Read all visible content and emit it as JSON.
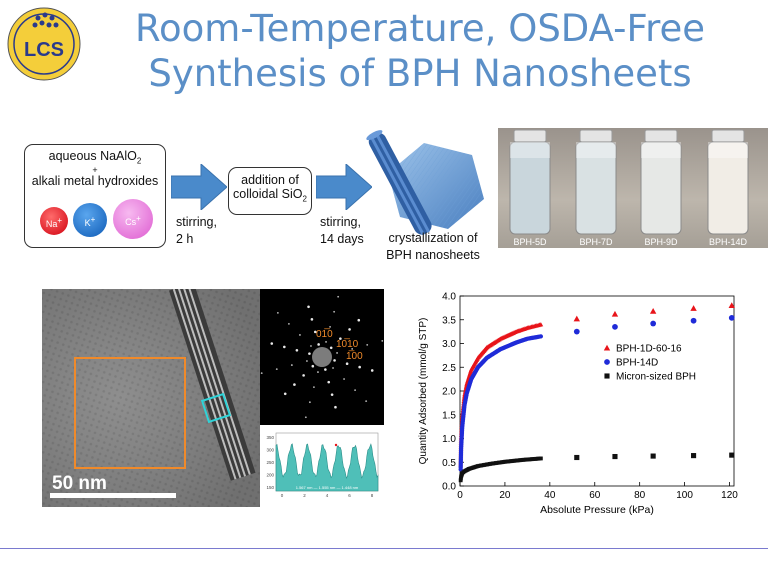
{
  "logo": {
    "text": "LCS"
  },
  "title": {
    "line1": "Room-Temperature, OSDA-Free",
    "line2": "Synthesis of BPH Nanosheets"
  },
  "scheme": {
    "box1_line1": "aqueous NaAlO",
    "box1_line1_sub": "2",
    "box1_plus": "+",
    "box1_line2": "alkali metal hydroxides",
    "ions": [
      {
        "label": "Na",
        "sup": "+",
        "color": "#e3001b"
      },
      {
        "label": "K",
        "sup": "+",
        "color": "#1a6fc9"
      },
      {
        "label": "Cs",
        "sup": "+",
        "color": "#e06fd6"
      }
    ],
    "step1_line1": "stirring,",
    "step1_line2": "2 h",
    "box2_line1": "addition of",
    "box2_line2": "colloidal SiO",
    "box2_sub": "2",
    "step2_line1": "stirring,",
    "step2_line2": "14 days",
    "crystal_line1": "crystallization of",
    "crystal_line2": "BPH nanosheets"
  },
  "vials": [
    {
      "label": "BPH-5D",
      "liquid": "#c9d6dc"
    },
    {
      "label": "BPH-7D",
      "liquid": "#d9e1e3"
    },
    {
      "label": "BPH-9D",
      "liquid": "#e6e8e6"
    },
    {
      "label": "BPH-14D",
      "liquid": "#f1ede6"
    }
  ],
  "tem": {
    "scale_label": "50 nm",
    "fft_labels": [
      "01̅0",
      "10̅10",
      "1̅00"
    ],
    "profile_ticks_y": [
      "350",
      "300",
      "250",
      "200",
      "150"
    ],
    "profile_ticks_x": [
      "0",
      "2",
      "4",
      "6",
      "8"
    ],
    "profile_readout": "1.567 nm — 1.555 nm — 1.448 nm"
  },
  "chart_data": {
    "type": "scatter",
    "xlabel": "Absolute Pressure (kPa)",
    "ylabel": "Quantity Adsorbed (mmol/g STP)",
    "xlim": [
      0,
      122
    ],
    "ylim": [
      0.0,
      4.0
    ],
    "xticks": [
      0,
      20,
      40,
      60,
      80,
      100,
      120
    ],
    "yticks": [
      0.0,
      0.5,
      1.0,
      1.5,
      2.0,
      2.5,
      3.0,
      3.5,
      4.0
    ],
    "legend_position": "right",
    "series": [
      {
        "name": "BPH-1D-60-16",
        "color": "#e8141a",
        "marker": "triangle",
        "x": [
          52,
          69,
          86,
          104,
          121
        ],
        "y": [
          3.52,
          3.62,
          3.68,
          3.74,
          3.8
        ],
        "curve_points": [
          [
            0.3,
            0.45
          ],
          [
            0.5,
            1.0
          ],
          [
            1,
            1.45
          ],
          [
            2,
            1.9
          ],
          [
            3,
            2.15
          ],
          [
            5,
            2.45
          ],
          [
            8,
            2.7
          ],
          [
            12,
            2.92
          ],
          [
            18,
            3.1
          ],
          [
            25,
            3.25
          ],
          [
            30,
            3.33
          ],
          [
            36,
            3.4
          ]
        ]
      },
      {
        "name": "BPH-14D",
        "color": "#1f2bd8",
        "marker": "circle",
        "x": [
          52,
          69,
          86,
          104,
          121
        ],
        "y": [
          3.25,
          3.35,
          3.42,
          3.48,
          3.54
        ],
        "curve_points": [
          [
            0.3,
            0.35
          ],
          [
            0.5,
            0.8
          ],
          [
            1,
            1.25
          ],
          [
            2,
            1.7
          ],
          [
            3,
            1.95
          ],
          [
            5,
            2.25
          ],
          [
            8,
            2.5
          ],
          [
            12,
            2.7
          ],
          [
            18,
            2.88
          ],
          [
            25,
            3.02
          ],
          [
            30,
            3.1
          ],
          [
            36,
            3.15
          ]
        ]
      },
      {
        "name": "Micron-sized BPH",
        "color": "#111111",
        "marker": "square",
        "x": [
          52,
          69,
          86,
          104,
          121
        ],
        "y": [
          0.6,
          0.62,
          0.63,
          0.64,
          0.65
        ],
        "curve_points": [
          [
            0.3,
            0.12
          ],
          [
            0.5,
            0.2
          ],
          [
            1,
            0.27
          ],
          [
            2,
            0.31
          ],
          [
            4,
            0.36
          ],
          [
            8,
            0.42
          ],
          [
            14,
            0.47
          ],
          [
            20,
            0.51
          ],
          [
            28,
            0.55
          ],
          [
            36,
            0.58
          ]
        ]
      }
    ]
  }
}
